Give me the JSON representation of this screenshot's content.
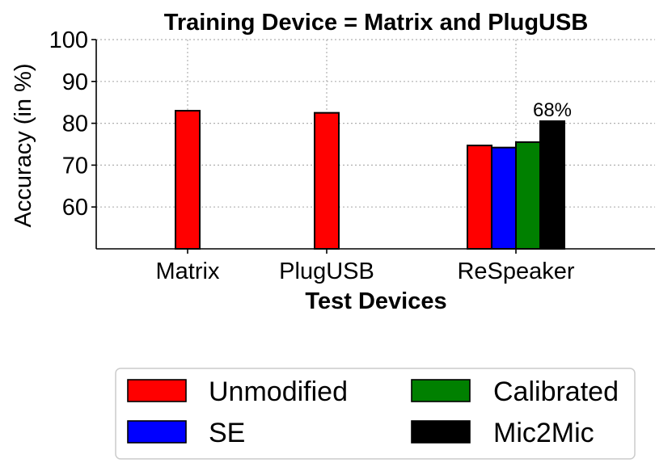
{
  "chart_data": {
    "type": "bar",
    "title": "Training Device = Matrix and PlugUSB",
    "xlabel": "Test Devices",
    "ylabel": "Accuracy (in %)",
    "ylim": [
      50,
      100
    ],
    "yticks": [
      "60",
      "70",
      "80",
      "90",
      "100"
    ],
    "grid": true,
    "legend_position": "bottom",
    "categories": [
      "Matrix",
      "PlugUSB",
      "ReSpeaker"
    ],
    "series": [
      {
        "name": "Unmodified",
        "color": "#ff0000",
        "values": [
          83,
          82.5,
          74.7
        ]
      },
      {
        "name": "SE",
        "color": "#0000ff",
        "values": [
          null,
          null,
          74.2
        ]
      },
      {
        "name": "Calibrated",
        "color": "#008000",
        "values": [
          null,
          null,
          75.5
        ]
      },
      {
        "name": "Mic2Mic",
        "color": "#000000",
        "values": [
          null,
          null,
          80.5
        ]
      }
    ],
    "annotations": [
      {
        "text": "68%",
        "category": "ReSpeaker",
        "series": "Mic2Mic"
      }
    ]
  }
}
